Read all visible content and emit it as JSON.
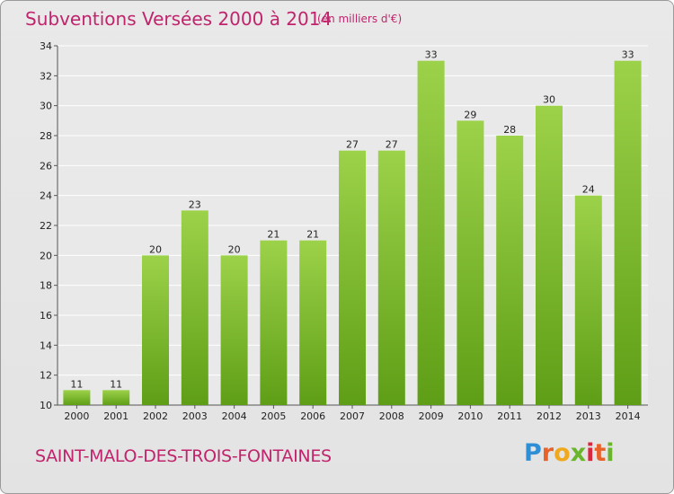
{
  "header": {
    "title": "Subventions Versées 2000 à 2014",
    "subtitle": "(en milliers d'€)"
  },
  "footer": {
    "commune": "SAINT-MALO-DES-TROIS-FONTAINES",
    "logo_text": "Proxiti"
  },
  "colors": {
    "accent": "#c0246c",
    "bar_light": "#9cd24a",
    "bar_dark": "#5e9e16"
  },
  "chart_data": {
    "type": "bar",
    "title": "Subventions Versées 2000 à 2014",
    "subtitle": "(en milliers d'€)",
    "xlabel": "",
    "ylabel": "",
    "categories": [
      "2000",
      "2001",
      "2002",
      "2003",
      "2004",
      "2005",
      "2006",
      "2007",
      "2008",
      "2009",
      "2010",
      "2011",
      "2012",
      "2013",
      "2014"
    ],
    "values": [
      11,
      11,
      20,
      23,
      20,
      21,
      21,
      27,
      27,
      33,
      29,
      28,
      30,
      24,
      33
    ],
    "ylim": [
      10,
      34
    ],
    "yticks": [
      10,
      12,
      14,
      16,
      18,
      20,
      22,
      24,
      26,
      28,
      30,
      32,
      34
    ],
    "grid": true
  }
}
